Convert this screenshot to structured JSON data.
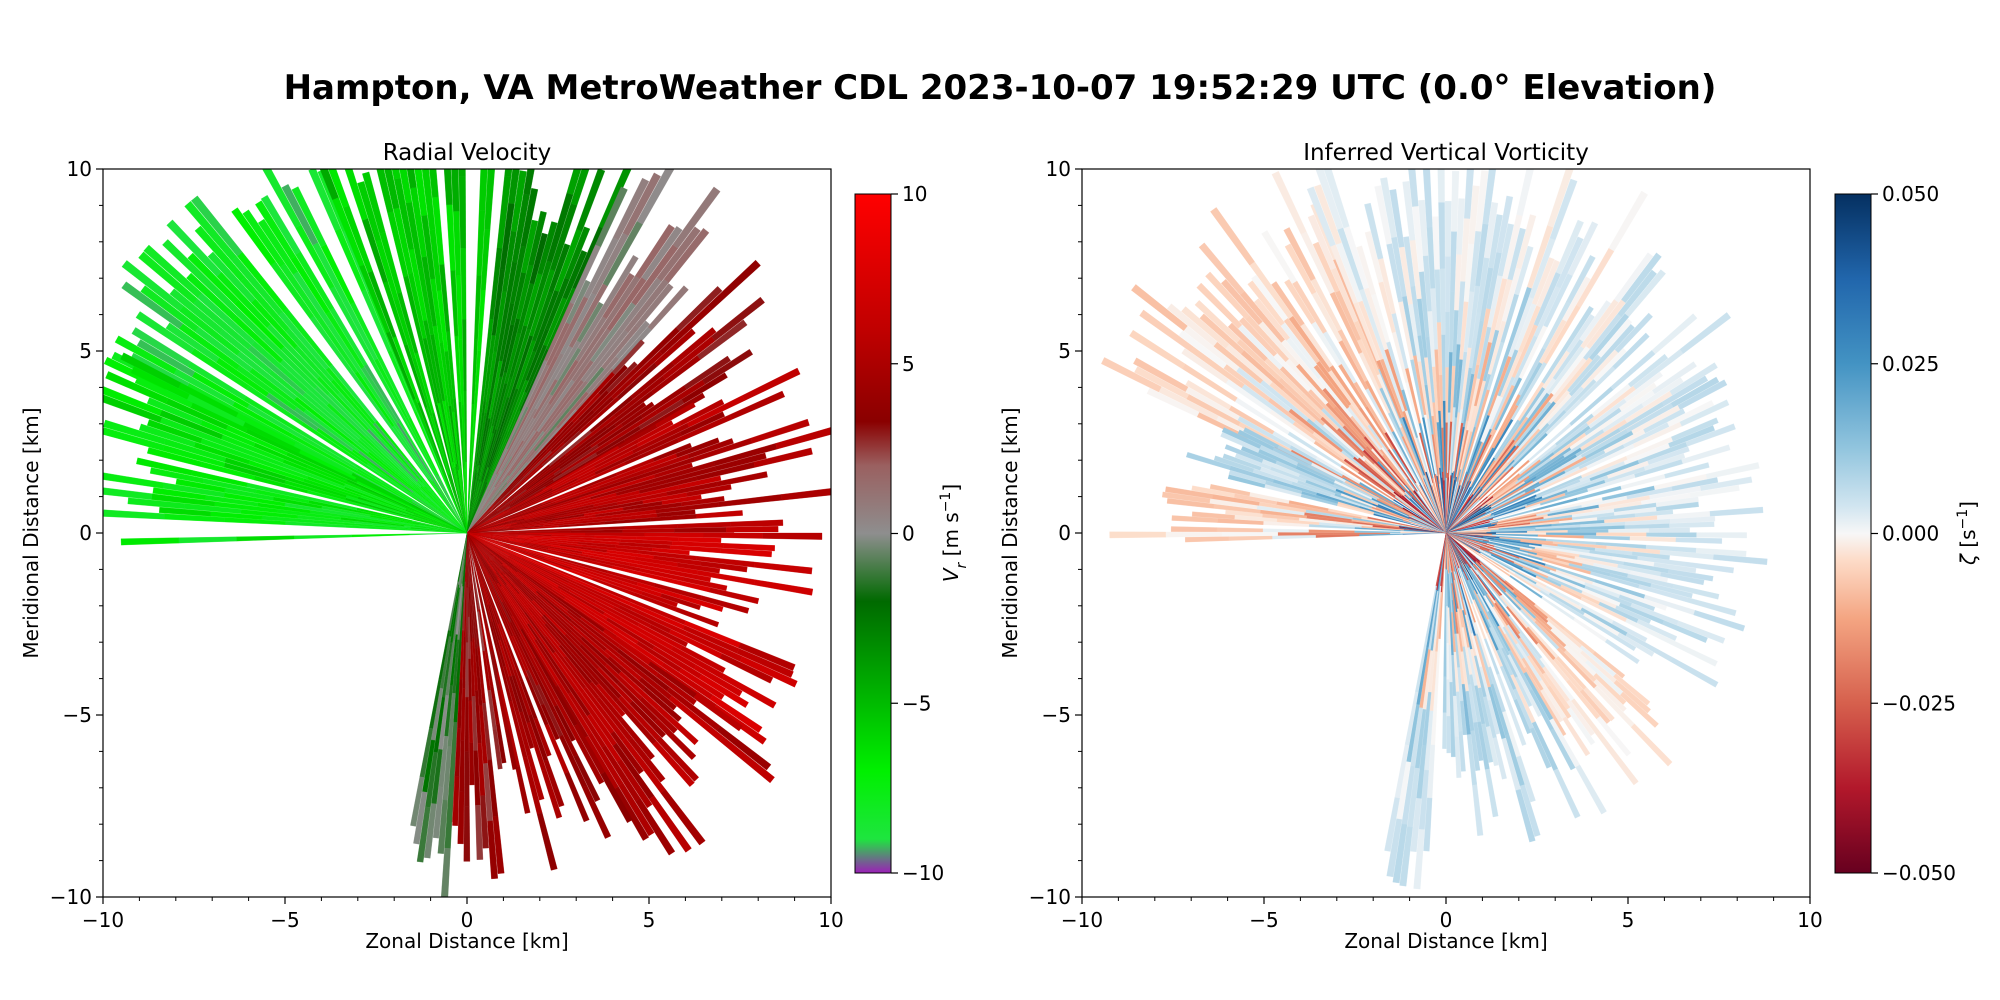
{
  "figure": {
    "title": "Hampton, VA MetroWeather CDL 2023-10-07 19:52:29 UTC (0.0° Elevation)"
  },
  "chart_data": [
    {
      "type": "heatmap",
      "projection": "polar-radial-beams",
      "title": "Radial Velocity",
      "xlabel": "Zonal Distance [km]",
      "ylabel": "Meridional Distance [km]",
      "xlim": [
        -10,
        10
      ],
      "ylim": [
        -10,
        10
      ],
      "xticks": [
        -10,
        -5,
        0,
        5,
        10
      ],
      "yticks": [
        -10,
        -5,
        0,
        5,
        10
      ],
      "grid": false,
      "colorbar": {
        "label_main": "V",
        "label_sub": "r",
        "label_units": " [m s",
        "label_exp": "−1",
        "label_close": "]",
        "range": [
          -10,
          10
        ],
        "ticks": [
          10,
          5,
          0,
          -5,
          -10
        ],
        "tick_labels": [
          "10",
          "5",
          "0",
          "−5",
          "−10"
        ],
        "colormap": [
          {
            "value": -10,
            "color": "#9c1fb8"
          },
          {
            "value": -9,
            "color": "#1ee53f"
          },
          {
            "value": -7,
            "color": "#00f000"
          },
          {
            "value": -4,
            "color": "#00a000"
          },
          {
            "value": -2,
            "color": "#006a00"
          },
          {
            "value": 0,
            "color": "#8e8e8e"
          },
          {
            "value": 2,
            "color": "#9a6060"
          },
          {
            "value": 3.3,
            "color": "#8a0000"
          },
          {
            "value": 6,
            "color": "#c00000"
          },
          {
            "value": 10,
            "color": "#ff0000"
          }
        ]
      },
      "sectors": [
        {
          "az_start": 295,
          "az_end": 338,
          "range_km": [
            10,
            12
          ],
          "value": -8.2
        },
        {
          "az_start": 338,
          "az_end": 6,
          "range_km": [
            10,
            12
          ],
          "value": -5.5
        },
        {
          "az_start": 6,
          "az_end": 24,
          "range_km": [
            8,
            12
          ],
          "value": -3.2
        },
        {
          "az_start": 24,
          "az_end": 42,
          "range_km": [
            7,
            12
          ],
          "value": 0.5
        },
        {
          "az_start": 42,
          "az_end": 60,
          "range_km": [
            6,
            11
          ],
          "value": 3.8
        },
        {
          "az_start": 60,
          "az_end": 90,
          "range_km": [
            6,
            11
          ],
          "value": 5.2
        },
        {
          "az_start": 90,
          "az_end": 125,
          "range_km": [
            6,
            10
          ],
          "value": 6.5
        },
        {
          "az_start": 125,
          "az_end": 150,
          "range_km": [
            6,
            11
          ],
          "value": 5.0
        },
        {
          "az_start": 150,
          "az_end": 168,
          "range_km": [
            6,
            10.5
          ],
          "value": 4.2
        },
        {
          "az_start": 168,
          "az_end": 183,
          "range_km": [
            6,
            10.5
          ],
          "value": 3.6
        },
        {
          "az_start": 183,
          "az_end": 190,
          "range_km": [
            8,
            10.5
          ],
          "value": -1.2
        },
        {
          "az_start": 284,
          "az_end": 297,
          "range_km": [
            9,
            11
          ],
          "value": -6.8
        },
        {
          "az_start": 268,
          "az_end": 282,
          "range_km": [
            8,
            10.5
          ],
          "value": -7.3
        }
      ]
    },
    {
      "type": "heatmap",
      "projection": "polar-radial-beams",
      "title": "Inferred Vertical Vorticity",
      "xlabel": "Zonal Distance [km]",
      "ylabel": "Meridional Distance [km]",
      "xlim": [
        -10,
        10
      ],
      "ylim": [
        -10,
        10
      ],
      "xticks": [
        -10,
        -5,
        0,
        5,
        10
      ],
      "yticks": [
        -10,
        -5,
        0,
        5,
        10
      ],
      "grid": false,
      "colorbar": {
        "label_main": "ζ",
        "label_units": " [s",
        "label_exp": "−1",
        "label_close": "]",
        "range": [
          -0.05,
          0.05
        ],
        "ticks": [
          0.05,
          0.025,
          0,
          -0.025,
          -0.05
        ],
        "tick_labels": [
          "0.050",
          "0.025",
          "0.000",
          "−0.025",
          "−0.050"
        ],
        "colormap": [
          {
            "value": -0.05,
            "color": "#67001f"
          },
          {
            "value": -0.0375,
            "color": "#b2182b"
          },
          {
            "value": -0.025,
            "color": "#d6604d"
          },
          {
            "value": -0.0125,
            "color": "#f4a582"
          },
          {
            "value": -0.004,
            "color": "#fddbc7"
          },
          {
            "value": 0,
            "color": "#f7f7f7"
          },
          {
            "value": 0.004,
            "color": "#d1e5f0"
          },
          {
            "value": 0.0125,
            "color": "#92c5de"
          },
          {
            "value": 0.025,
            "color": "#4393c3"
          },
          {
            "value": 0.0375,
            "color": "#2166ac"
          },
          {
            "value": 0.05,
            "color": "#053061"
          }
        ]
      },
      "sectors": [
        {
          "az_start": 295,
          "az_end": 338,
          "range_km": [
            8,
            11
          ],
          "value": -0.004
        },
        {
          "az_start": 338,
          "az_end": 30,
          "range_km": [
            8,
            11
          ],
          "value": 0.002
        },
        {
          "az_start": 30,
          "az_end": 60,
          "range_km": [
            7,
            10
          ],
          "value": 0.003
        },
        {
          "az_start": 60,
          "az_end": 90,
          "range_km": [
            6,
            9
          ],
          "value": 0.004
        },
        {
          "az_start": 90,
          "az_end": 125,
          "range_km": [
            6,
            9
          ],
          "value": 0.003
        },
        {
          "az_start": 125,
          "az_end": 150,
          "range_km": [
            6,
            9
          ],
          "value": -0.003
        },
        {
          "az_start": 150,
          "az_end": 183,
          "range_km": [
            5,
            9
          ],
          "value": 0.006
        },
        {
          "az_start": 183,
          "az_end": 190,
          "range_km": [
            8,
            10
          ],
          "value": 0.004
        },
        {
          "az_start": 284,
          "az_end": 297,
          "range_km": [
            6,
            7.5
          ],
          "value": 0.008
        },
        {
          "az_start": 268,
          "az_end": 282,
          "range_km": [
            6,
            9.5
          ],
          "value": -0.006
        }
      ]
    }
  ]
}
